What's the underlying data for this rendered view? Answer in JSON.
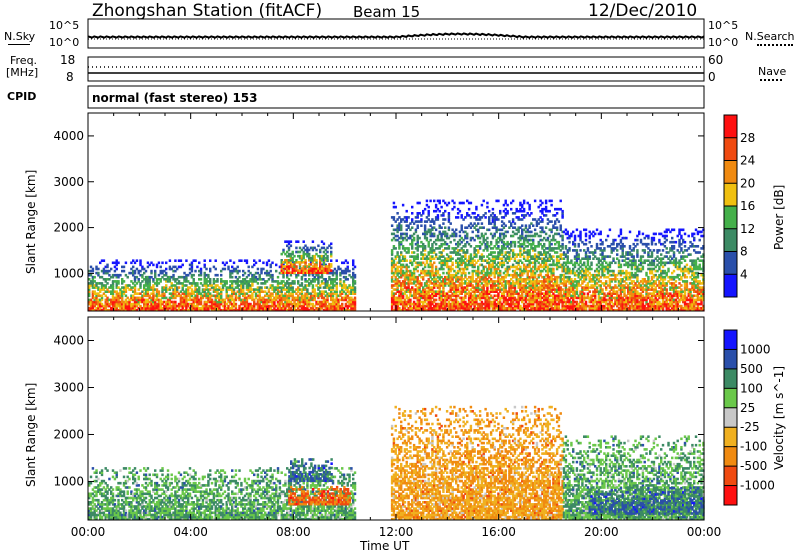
{
  "header": {
    "station": "Zhongshan Station (fitACF)",
    "beam": "Beam 15",
    "date": "12/Dec/2010"
  },
  "panel_labels": {
    "nsky": "N.Sky",
    "nsearch": "N.Search",
    "freq": "Freq.",
    "freq_unit": "[MHz]",
    "nave": "Nave",
    "cpid": "CPID",
    "cpid_value": "normal (fast stereo) 153"
  },
  "noise_ticks": {
    "left_top": "10^5",
    "left_bottom": "10^0",
    "right_top": "10^5",
    "right_bottom": "10^0"
  },
  "freq_ticks": {
    "left_top": "18",
    "left_bottom": "8",
    "right_top": "60",
    "right_bottom": "0"
  },
  "colors": {
    "power_scale": [
      "#1515ff",
      "#2a4faa",
      "#3c8a64",
      "#44b04a",
      "#f0c010",
      "#f08a10",
      "#f04a10",
      "#ff1010"
    ],
    "velocity_scale": [
      "#ff1010",
      "#f04a10",
      "#f08a10",
      "#f0b020",
      "#c8c8c8",
      "#6ac84a",
      "#3c8a64",
      "#2a4faa",
      "#1515ff"
    ]
  },
  "chart_data": [
    {
      "type": "heatmap",
      "title": "Power",
      "xlabel": "Time UT",
      "ylabel": "Slant Range [km]",
      "xlim": [
        "00:00",
        "00:00"
      ],
      "ylim": [
        180,
        4500
      ],
      "x_ticks": [
        "00:00",
        "04:00",
        "08:00",
        "12:00",
        "16:00",
        "20:00",
        "00:00"
      ],
      "y_ticks": [
        1000,
        2000,
        3000,
        4000
      ],
      "colorbar": {
        "label": "Power [dB]",
        "ticks": [
          4,
          8,
          12,
          16,
          20,
          24,
          28
        ],
        "range": [
          0,
          32
        ]
      },
      "regions": [
        {
          "t0": 0.0,
          "t1": 10.4,
          "r0": 180,
          "r1": 1300,
          "level": "mixed-strong",
          "peak_db": 30
        },
        {
          "t0": 7.5,
          "t1": 9.5,
          "r0": 1000,
          "r1": 1700,
          "level": "moderate",
          "peak_db": 18
        },
        {
          "t0": 11.8,
          "t1": 18.5,
          "r0": 180,
          "r1": 2600,
          "level": "mixed",
          "peak_db": 28
        },
        {
          "t0": 18.5,
          "t1": 24.0,
          "r0": 180,
          "r1": 2000,
          "level": "mixed-strong",
          "peak_db": 30
        }
      ]
    },
    {
      "type": "heatmap",
      "title": "Velocity",
      "xlabel": "Time UT",
      "ylabel": "Slant Range [km]",
      "xlim": [
        "00:00",
        "00:00"
      ],
      "ylim": [
        180,
        4500
      ],
      "x_ticks": [
        "00:00",
        "04:00",
        "08:00",
        "12:00",
        "16:00",
        "20:00",
        "00:00"
      ],
      "y_ticks": [
        1000,
        2000,
        3000,
        4000
      ],
      "colorbar": {
        "label": "Velocity [m s^-1]",
        "ticks": [
          1000,
          500,
          100,
          25,
          -25,
          -100,
          -500,
          -1000
        ]
      },
      "regions": [
        {
          "t0": 0.0,
          "t1": 10.4,
          "r0": 180,
          "r1": 1300,
          "dominant_velocity": "100"
        },
        {
          "t0": 7.8,
          "t1": 10.2,
          "r0": 500,
          "r1": 900,
          "dominant_velocity": "-500"
        },
        {
          "t0": 7.8,
          "t1": 9.5,
          "r0": 1000,
          "r1": 1500,
          "dominant_velocity": "1000"
        },
        {
          "t0": 11.8,
          "t1": 18.5,
          "r0": 180,
          "r1": 2600,
          "dominant_velocity": "-100"
        },
        {
          "t0": 18.5,
          "t1": 24.0,
          "r0": 180,
          "r1": 2000,
          "dominant_velocity": "100"
        },
        {
          "t0": 19.5,
          "t1": 24.0,
          "r0": 300,
          "r1": 900,
          "dominant_velocity": "1000"
        }
      ]
    }
  ]
}
